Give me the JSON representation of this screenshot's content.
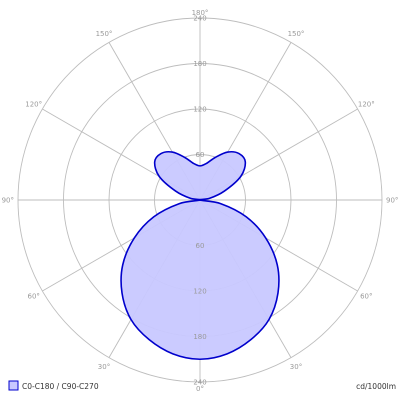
{
  "chart_data": {
    "type": "polar",
    "rmax": 240,
    "r_ticks": [
      60,
      120,
      180,
      240
    ],
    "angle_labels": [
      {
        "angle": 0,
        "side": "bottom",
        "text": "0°"
      },
      {
        "angle": 30,
        "side": "right",
        "text": "30°"
      },
      {
        "angle": 30,
        "side": "left",
        "text": "30°"
      },
      {
        "angle": 60,
        "side": "right",
        "text": "60°"
      },
      {
        "angle": 60,
        "side": "left",
        "text": "60°"
      },
      {
        "angle": 90,
        "side": "right",
        "text": "90°"
      },
      {
        "angle": 90,
        "side": "left",
        "text": "90°"
      },
      {
        "angle": 120,
        "side": "right",
        "text": "120°"
      },
      {
        "angle": 120,
        "side": "left",
        "text": "120°"
      },
      {
        "angle": 150,
        "side": "right",
        "text": "150°"
      },
      {
        "angle": 150,
        "side": "left",
        "text": "150°"
      },
      {
        "angle": 180,
        "side": "top",
        "text": "180°"
      }
    ],
    "series": [
      {
        "name": "C0-C180 / C90-C270",
        "color": "#0000cc",
        "fill": "#c8c8ff",
        "gamma": [
          0,
          10,
          20,
          30,
          40,
          50,
          60,
          70,
          80,
          90,
          100,
          110,
          120,
          130,
          140,
          150,
          160,
          170,
          180
        ],
        "intensity": [
          210,
          206,
          196,
          182,
          160,
          133,
          100,
          65,
          28,
          0,
          13,
          34,
          62,
          78,
          80,
          73,
          60,
          49,
          45
        ]
      }
    ],
    "unit": "cd/1000lm"
  }
}
